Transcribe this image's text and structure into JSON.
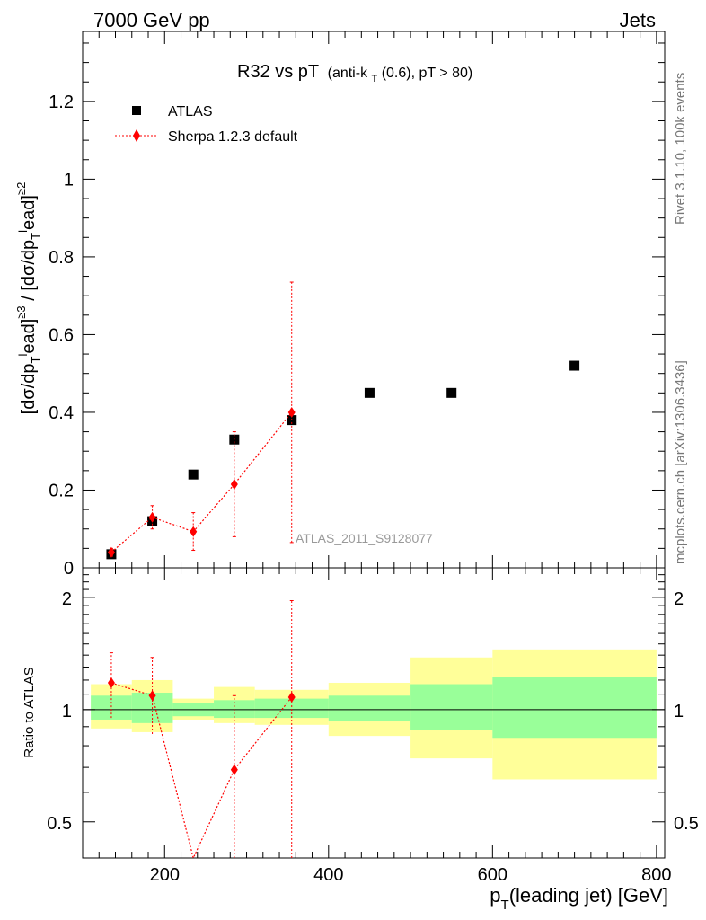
{
  "header": {
    "left": "7000 GeV pp",
    "right": "Jets"
  },
  "chart_data": {
    "type": "scatter",
    "title_main": "R32 vs pT",
    "title_sub_pre": "(anti-k",
    "title_sub_sub": "T",
    "title_sub_post": "(0.6), pT > 80)",
    "ylabel": "[dσ/dp_T^lead]^≥3 / [dσ/dp_T^lead]^≥2",
    "xlabel": "p_T(leading jet) [GeV]",
    "xlim": [
      100,
      810
    ],
    "main_ylim": [
      0,
      1.38
    ],
    "main_yticks": [
      {
        "v": 0,
        "label": "0"
      },
      {
        "v": 0.2,
        "label": "0.2"
      },
      {
        "v": 0.4,
        "label": "0.4"
      },
      {
        "v": 0.6,
        "label": "0.6"
      },
      {
        "v": 0.8,
        "label": "0.8"
      },
      {
        "v": 1.0,
        "label": "1"
      },
      {
        "v": 1.2,
        "label": "1.2"
      }
    ],
    "xticks": [
      {
        "v": 200,
        "label": "200"
      },
      {
        "v": 400,
        "label": "400"
      },
      {
        "v": 600,
        "label": "600"
      },
      {
        "v": 800,
        "label": "800"
      }
    ],
    "ratio_ylim": [
      0.4,
      2.4
    ],
    "ratio_ylabel": "Ratio to ATLAS",
    "ratio_yticks": [
      {
        "v": 0.5,
        "label": "0.5"
      },
      {
        "v": 1,
        "label": "1"
      },
      {
        "v": 2,
        "label": "2"
      }
    ],
    "legend": {
      "atlas": "ATLAS",
      "sherpa": "Sherpa 1.2.3 default",
      "position": "top-left"
    },
    "watermark": "ATLAS_2011_S9128077",
    "side_top": "Rivet 3.1.10,  100k events",
    "side_bottom": "mcplots.cern.ch [arXiv:1306.3436]",
    "series": [
      {
        "name": "ATLAS",
        "points": [
          {
            "x": 135,
            "y": 0.035
          },
          {
            "x": 185,
            "y": 0.12
          },
          {
            "x": 235,
            "y": 0.24
          },
          {
            "x": 285,
            "y": 0.33
          },
          {
            "x": 355,
            "y": 0.38
          },
          {
            "x": 450,
            "y": 0.45
          },
          {
            "x": 550,
            "y": 0.45
          },
          {
            "x": 700,
            "y": 0.52
          }
        ]
      },
      {
        "name": "Sherpa 1.2.3 default",
        "points": [
          {
            "x": 135,
            "y": 0.04,
            "lo": 0.03,
            "hi": 0.05
          },
          {
            "x": 185,
            "y": 0.13,
            "lo": 0.1,
            "hi": 0.16
          },
          {
            "x": 235,
            "y": 0.093,
            "lo": 0.045,
            "hi": 0.142
          },
          {
            "x": 285,
            "y": 0.215,
            "lo": 0.08,
            "hi": 0.35
          },
          {
            "x": 355,
            "y": 0.4,
            "lo": 0.065,
            "hi": 0.735
          }
        ]
      }
    ],
    "ratio_points": [
      {
        "x": 135,
        "y": 1.18,
        "lo": 0.95,
        "hi": 1.42
      },
      {
        "x": 185,
        "y": 1.09,
        "lo": 0.86,
        "hi": 1.38
      },
      {
        "x": 235,
        "y": 0.38,
        "lo": 0.38,
        "hi": 0.38
      },
      {
        "x": 285,
        "y": 0.69,
        "lo": 0.38,
        "hi": 1.09
      },
      {
        "x": 355,
        "y": 1.08,
        "lo": 0.38,
        "hi": 1.96
      }
    ],
    "bands": [
      {
        "x0": 110,
        "x1": 160,
        "in_lo": 0.94,
        "in_hi": 1.09,
        "out_lo": 0.89,
        "out_hi": 1.17
      },
      {
        "x0": 160,
        "x1": 210,
        "in_lo": 0.92,
        "in_hi": 1.11,
        "out_lo": 0.87,
        "out_hi": 1.2
      },
      {
        "x0": 210,
        "x1": 260,
        "in_lo": 0.96,
        "in_hi": 1.04,
        "out_lo": 0.94,
        "out_hi": 1.07
      },
      {
        "x0": 260,
        "x1": 310,
        "in_lo": 0.95,
        "in_hi": 1.06,
        "out_lo": 0.92,
        "out_hi": 1.15
      },
      {
        "x0": 310,
        "x1": 400,
        "in_lo": 0.95,
        "in_hi": 1.07,
        "out_lo": 0.91,
        "out_hi": 1.13
      },
      {
        "x0": 400,
        "x1": 500,
        "in_lo": 0.93,
        "in_hi": 1.09,
        "out_lo": 0.85,
        "out_hi": 1.18
      },
      {
        "x0": 500,
        "x1": 600,
        "in_lo": 0.88,
        "in_hi": 1.17,
        "out_lo": 0.74,
        "out_hi": 1.38
      },
      {
        "x0": 600,
        "x1": 800,
        "in_lo": 0.84,
        "in_hi": 1.22,
        "out_lo": 0.65,
        "out_hi": 1.45
      }
    ],
    "colors": {
      "atlas": "#000000",
      "sherpa": "#ff0000",
      "band_inner": "#99ff99",
      "band_outer": "#ffff99",
      "watermark": "#999999",
      "side_text": "#777777"
    }
  }
}
